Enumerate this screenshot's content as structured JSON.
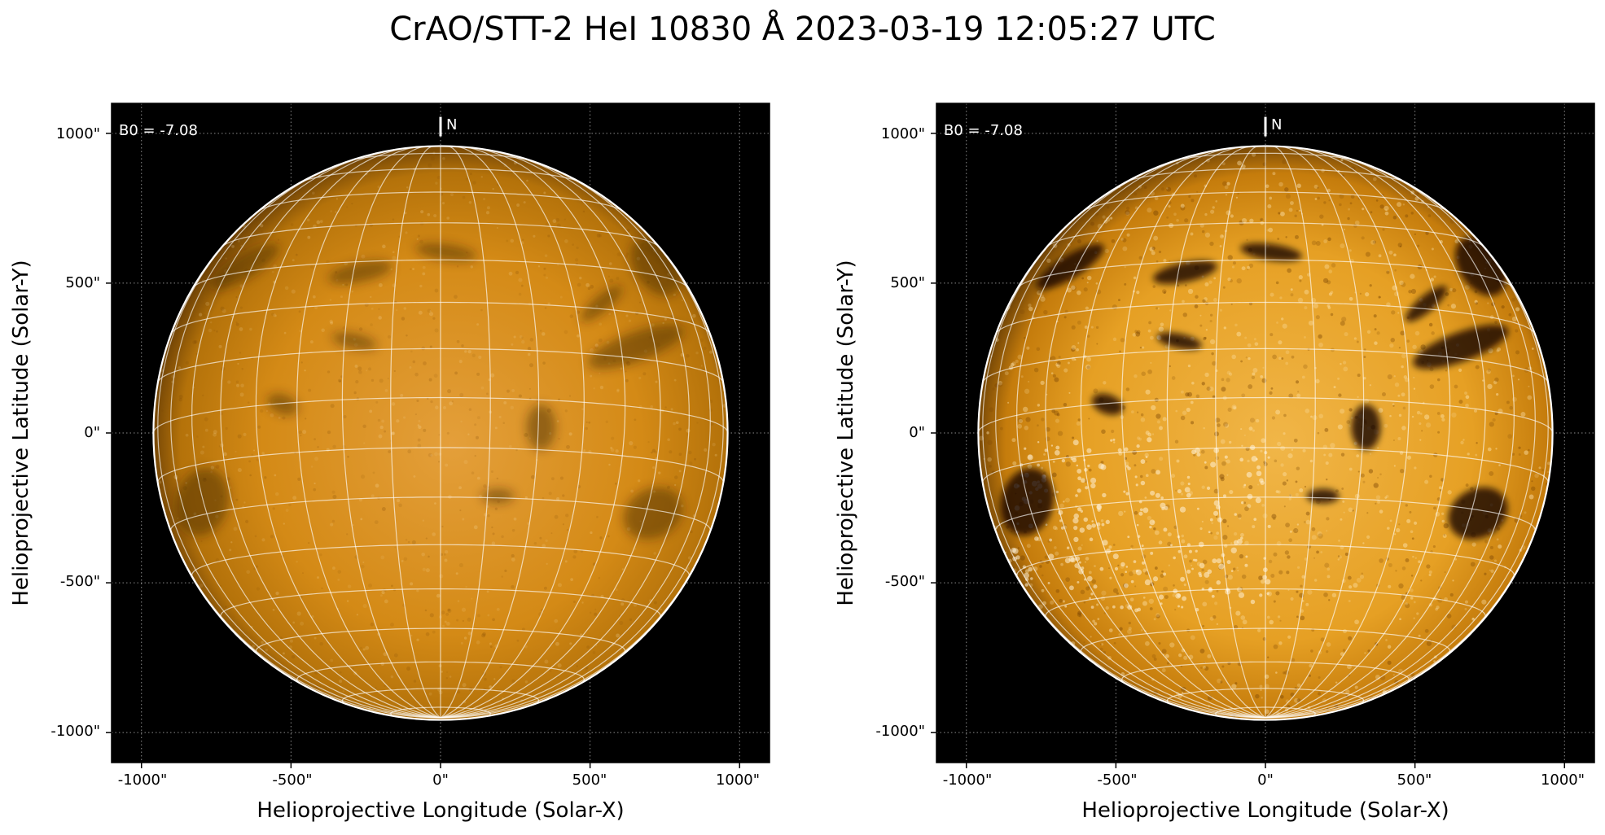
{
  "figure": {
    "title": "CrAO/STT-2 HeI 10830 Å 2023-03-19 12:05:27 UTC"
  },
  "panels": [
    {
      "id": "left",
      "b0_label": "B0 = -7.08",
      "north_label": "N",
      "xlabel": "Helioprojective Longitude (Solar-X)",
      "ylabel": "Helioprojective Latitude (Solar-Y)",
      "x_ticks": [
        -1000,
        -500,
        0,
        500,
        1000
      ],
      "y_ticks": [
        1000,
        500,
        0,
        -500,
        -1000
      ],
      "x_tick_labels": [
        "-1000\"",
        "-500\"",
        "0\"",
        "500\"",
        "1000\""
      ],
      "y_tick_labels": [
        "1000\"",
        "500\"",
        "0\"",
        "-500\"",
        "-1000\""
      ],
      "xlim": [
        -1100,
        1100
      ],
      "ylim": [
        -1100,
        1100
      ],
      "solar_radius_arcsec": 960,
      "disk_color": "#d88c14",
      "background_color": "#000000",
      "contrast": "low"
    },
    {
      "id": "right",
      "b0_label": "B0 = -7.08",
      "north_label": "N",
      "xlabel": "Helioprojective Longitude (Solar-X)",
      "ylabel": "Helioprojective Latitude (Solar-Y)",
      "x_ticks": [
        -1000,
        -500,
        0,
        500,
        1000
      ],
      "y_ticks": [
        1000,
        500,
        0,
        -500,
        -1000
      ],
      "x_tick_labels": [
        "-1000\"",
        "-500\"",
        "0\"",
        "500\"",
        "1000\""
      ],
      "y_tick_labels": [
        "1000\"",
        "500\"",
        "0\"",
        "-500\"",
        "-1000\""
      ],
      "xlim": [
        -1100,
        1100
      ],
      "ylim": [
        -1100,
        1100
      ],
      "solar_radius_arcsec": 960,
      "disk_color": "#e7a020",
      "background_color": "#000000",
      "contrast": "high"
    }
  ],
  "grid": {
    "heliographic_grid_step_deg": 10,
    "b0_deg": -7.08,
    "grid_color": "#ffffff",
    "limb_color": "#ffffff"
  }
}
